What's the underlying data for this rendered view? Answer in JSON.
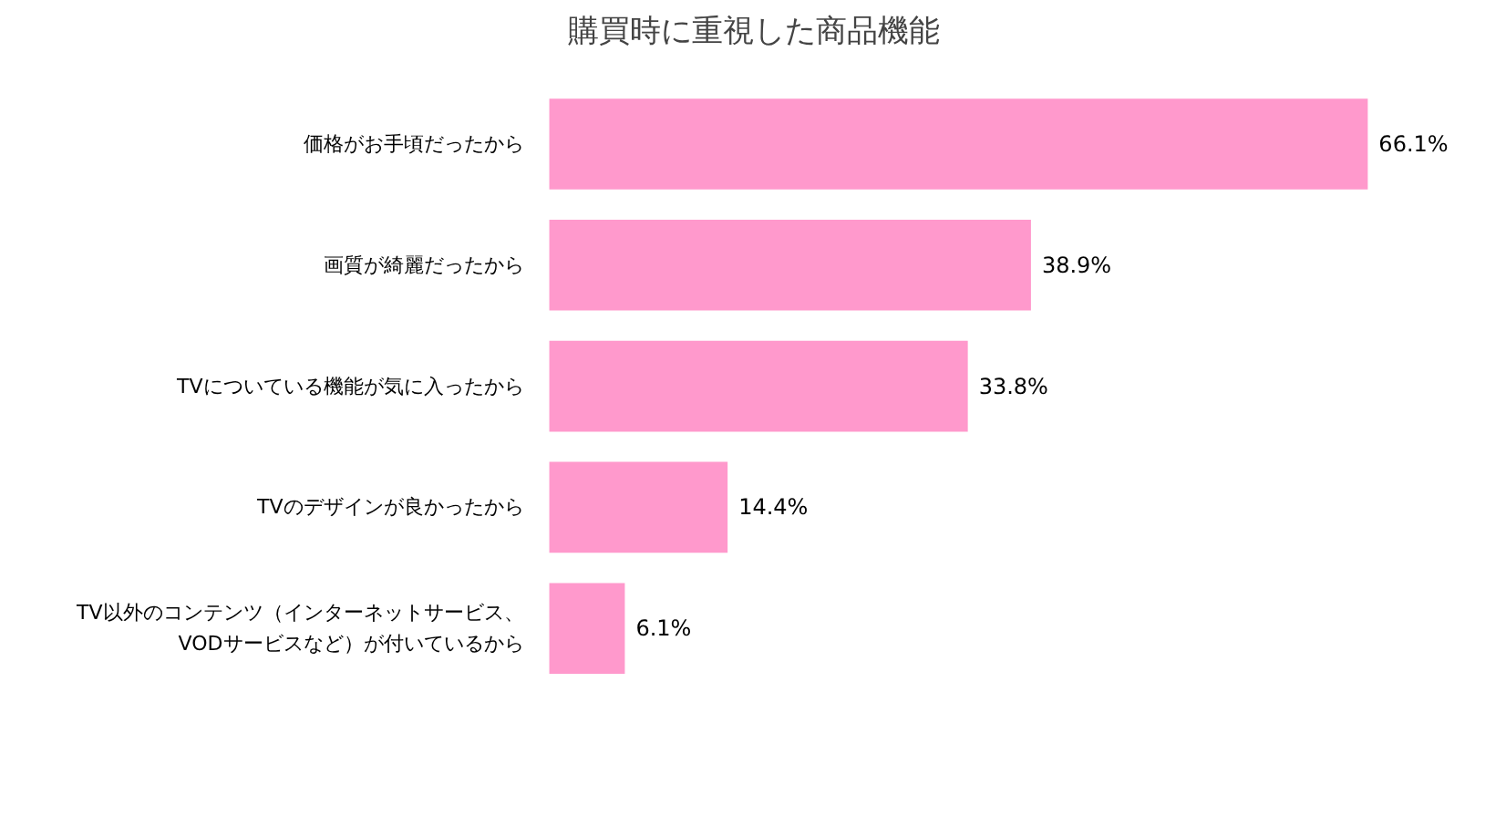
{
  "chart_data": {
    "type": "bar",
    "orientation": "horizontal",
    "title": "購買時に重視した商品機能",
    "categories": [
      "価格がお手頃だったから",
      "画質が綺麗だったから",
      "TVについている機能が気に入ったから",
      "TVのデザインが良かったから",
      "TV以外のコンテンツ（インターネットサービス、\nVODサービスなど）が付いているから"
    ],
    "values": [
      66.1,
      38.9,
      33.8,
      14.4,
      6.1
    ],
    "value_labels": [
      "66.1%",
      "38.9%",
      "33.8%",
      "14.4%",
      "6.1%"
    ],
    "color": "#ff99cc",
    "grid": false
  }
}
